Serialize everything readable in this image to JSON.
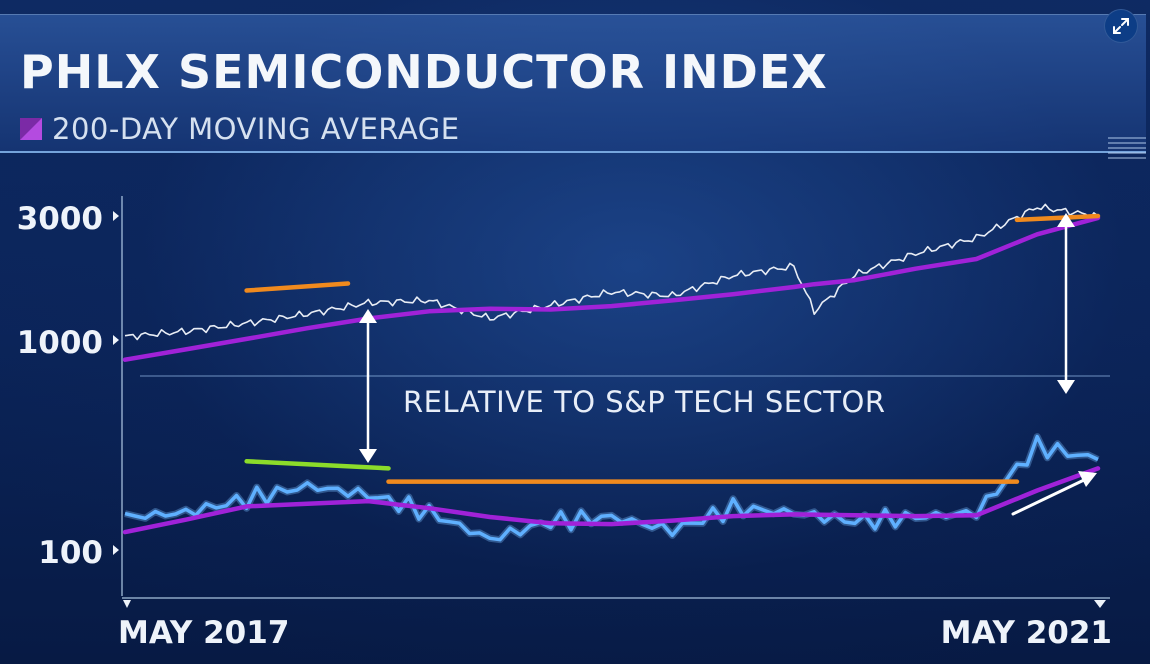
{
  "title": "PHLX SEMICONDUCTOR INDEX",
  "subtitle": "200-DAY MOVING AVERAGE",
  "annotation": "RELATIVE TO S&P TECH SECTOR",
  "colors": {
    "price": "#e8edf5",
    "moving_average": "#a022d8",
    "relative": "#5fb0ff",
    "resistance": "#f08a1e",
    "trendline_green": "#8cdc2a",
    "arrow": "#ffffff"
  },
  "chart_data": [
    {
      "type": "line",
      "title": "PHLX SEMICONDUCTOR INDEX",
      "scale": "log",
      "y_ticks": [
        100,
        1000,
        3000
      ],
      "y_tick_labels": [
        "100",
        "1000",
        "3000"
      ],
      "x_tick_labels": [
        "MAY 2017",
        "MAY 2021"
      ],
      "x": [
        "2017-05",
        "2017-08",
        "2017-11",
        "2018-02",
        "2018-05",
        "2018-08",
        "2018-11",
        "2019-02",
        "2019-05",
        "2019-08",
        "2019-11",
        "2020-02",
        "2020-03",
        "2020-05",
        "2020-08",
        "2020-11",
        "2021-02",
        "2021-05"
      ],
      "series": [
        {
          "values": [
            1030,
            1080,
            1160,
            1260,
            1390,
            1420,
            1210,
            1360,
            1530,
            1480,
            1770,
            1920,
            1290,
            1780,
            2150,
            2470,
            3250,
            3000
          ]
        },
        {
          "name": "200-DAY MOVING AVERAGE",
          "values": [
            840,
            920,
            1010,
            1110,
            1210,
            1290,
            1320,
            1310,
            1350,
            1420,
            1500,
            1600,
            1640,
            1700,
            1880,
            2050,
            2550,
            2950
          ]
        }
      ],
      "annotations": [
        "price peak near 1550 in early 2018 marked with orange line",
        "orange line near 3000 in May 2021"
      ]
    },
    {
      "type": "line",
      "title": "RELATIVE TO S&P TECH SECTOR",
      "x": [
        "2017-05",
        "2017-08",
        "2017-11",
        "2018-02",
        "2018-05",
        "2018-08",
        "2018-11",
        "2019-02",
        "2019-05",
        "2019-08",
        "2019-11",
        "2020-02",
        "2020-05",
        "2020-08",
        "2020-11",
        "2021-02",
        "2021-05"
      ],
      "series": [
        {
          "values": [
            135,
            140,
            155,
            170,
            160,
            140,
            110,
            130,
            135,
            120,
            145,
            140,
            130,
            135,
            140,
            215,
            200
          ]
        },
        {
          "name": "200-DAY MOVING AVERAGE",
          "values": [
            118,
            132,
            147,
            150,
            153,
            145,
            135,
            128,
            127,
            131,
            136,
            138,
            137,
            136,
            137,
            165,
            190
          ]
        }
      ]
    }
  ]
}
